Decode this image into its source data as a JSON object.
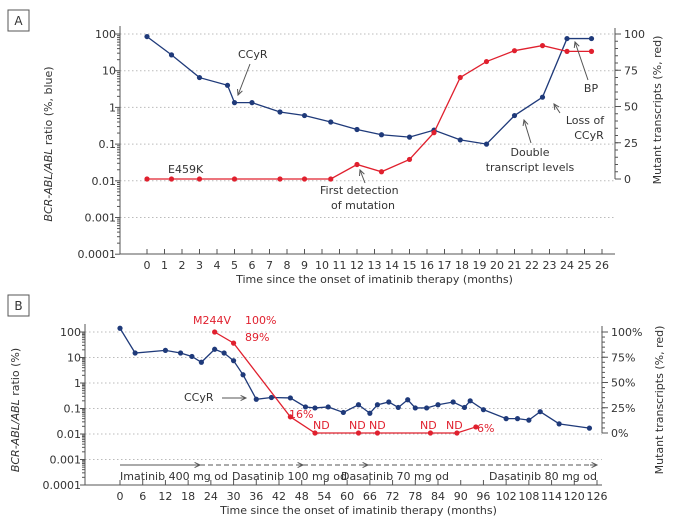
{
  "chart_data": [
    {
      "panel": "A",
      "type": "line",
      "xlabel": "Time since the onset of imatinib therapy (months)",
      "ylabel_left_italic": "BCR-ABL/ABL",
      "ylabel_left_rest": " ratio (%, blue)",
      "ylabel_right": "Mutant transcripts (%, red)",
      "x_ticks": [
        0,
        1,
        2,
        3,
        4,
        5,
        6,
        7,
        8,
        9,
        10,
        11,
        12,
        13,
        14,
        15,
        16,
        17,
        18,
        19,
        20,
        21,
        22,
        23,
        24,
        25,
        26
      ],
      "xlim": [
        -1,
        26.5
      ],
      "y_left_scale": "log",
      "y_left_ticks": [
        "100",
        "10",
        "1",
        "0.1",
        "0.01",
        "0.001",
        "0.0001"
      ],
      "y_left_lim": [
        0.0001,
        100
      ],
      "y_right_ticks": [
        "100",
        "75",
        "50",
        "25",
        "0"
      ],
      "y_right_lim": [
        0,
        100
      ],
      "grid": true,
      "series": [
        {
          "name": "BCR-ABL/ABL ratio",
          "color": "#1f3a7a",
          "axis": "left",
          "x": [
            0,
            1.4,
            3,
            4.6,
            5,
            6,
            7.6,
            9,
            10.5,
            12,
            13.4,
            15,
            16.4,
            17.9,
            19.4,
            21,
            22.6,
            24,
            25.4
          ],
          "y": [
            85,
            27,
            6.5,
            4,
            1.35,
            1.35,
            0.75,
            0.6,
            0.4,
            0.25,
            0.18,
            0.155,
            0.24,
            0.13,
            0.1,
            0.6,
            1.9,
            75,
            75
          ]
        },
        {
          "name": "Mutant transcripts",
          "color": "#e0202e",
          "axis": "right",
          "x": [
            0,
            1.4,
            3,
            5,
            7.6,
            9,
            10.5,
            12,
            13.4,
            15,
            16.4,
            17.9,
            19.4,
            21,
            22.6,
            24,
            25.4
          ],
          "y": [
            0,
            0,
            0,
            0,
            0,
            0,
            0,
            10,
            5,
            13.5,
            32,
            70,
            81,
            88.5,
            92,
            88,
            88
          ]
        }
      ],
      "annotations": [
        {
          "text": "CCyR"
        },
        {
          "text": "E459K"
        },
        {
          "text": "First detection"
        },
        {
          "text": "of mutation"
        },
        {
          "text": "Double"
        },
        {
          "text": "transcript levels"
        },
        {
          "text": "Loss of"
        },
        {
          "text": "CCyR"
        },
        {
          "text": "BP"
        }
      ]
    },
    {
      "panel": "B",
      "type": "line",
      "xlabel": "Time since the onset of imatinib therapy (months)",
      "ylabel_left_italic": "BCR-ABL/ABL",
      "ylabel_left_rest": " ratio (%)",
      "ylabel_right": "Mutant transcripts (%, red)",
      "x_ticks": [
        0,
        6,
        12,
        18,
        24,
        30,
        36,
        42,
        48,
        54,
        60,
        66,
        72,
        78,
        84,
        90,
        96,
        102,
        108,
        114,
        120,
        126
      ],
      "xlim": [
        -8,
        128
      ],
      "y_left_scale": "log",
      "y_left_ticks": [
        "100",
        "10",
        "1",
        "0.1",
        "0.01",
        "0.001",
        "0.0001"
      ],
      "y_left_lim": [
        0.0001,
        100
      ],
      "y_right_ticks": [
        "100%",
        "75%",
        "50%",
        "25%",
        "0%"
      ],
      "y_right_lim": [
        0,
        100
      ],
      "grid": true,
      "series": [
        {
          "name": "BCR-ABL/ABL ratio",
          "color": "#1f3a7a",
          "axis": "left",
          "x": [
            0,
            4,
            12,
            16,
            19,
            21.5,
            25,
            27.5,
            30,
            32.5,
            36,
            40,
            45,
            49,
            51.5,
            55,
            59,
            63,
            66,
            68,
            71,
            73.5,
            76,
            78,
            81,
            84,
            88,
            91,
            92.5,
            96,
            102,
            105,
            108,
            111,
            116,
            124
          ],
          "y": [
            140,
            15,
            19,
            15,
            11,
            6.5,
            21,
            15,
            7.5,
            2.1,
            0.23,
            0.27,
            0.26,
            0.115,
            0.105,
            0.115,
            0.07,
            0.14,
            0.065,
            0.14,
            0.18,
            0.11,
            0.22,
            0.105,
            0.105,
            0.14,
            0.18,
            0.11,
            0.2,
            0.09,
            0.04,
            0.04,
            0.035,
            0.075,
            0.025,
            0.017
          ],
          "y_extra_end": 0.032
        },
        {
          "name": "Mutant transcripts",
          "color": "#e0202e",
          "axis": "right",
          "x": [
            25,
            30,
            45,
            51.5,
            63,
            68,
            82,
            89,
            94
          ],
          "y": [
            100,
            89,
            16,
            0,
            0,
            0,
            0,
            0,
            6
          ]
        }
      ],
      "annotations": [
        {
          "text": "M244V",
          "color": "red"
        },
        {
          "text": "100%",
          "color": "red"
        },
        {
          "text": "89%",
          "color": "red"
        },
        {
          "text": "16%",
          "color": "red"
        },
        {
          "text": "ND",
          "color": "red"
        },
        {
          "text": "ND",
          "color": "red"
        },
        {
          "text": "ND",
          "color": "red"
        },
        {
          "text": "ND",
          "color": "red"
        },
        {
          "text": "ND",
          "color": "red"
        },
        {
          "text": "6%",
          "color": "red"
        },
        {
          "text": "CCyR"
        }
      ],
      "therapy_labels": [
        "Imatinib 400 mg od",
        "Dasatinib 100 mg od",
        "Dasatinib 70 mg od",
        "Dasatinib 80 mg od"
      ]
    }
  ],
  "panels": {
    "a_label": "A",
    "b_label": "B"
  }
}
